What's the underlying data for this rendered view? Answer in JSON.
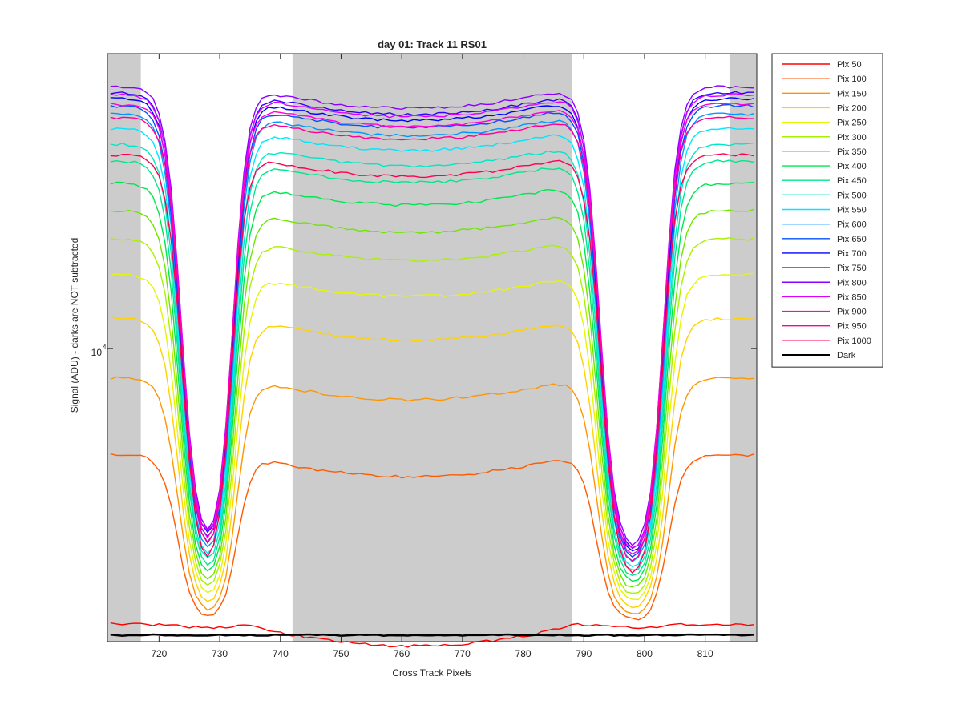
{
  "chart_data": {
    "type": "line",
    "title": "day 01: Track 11  RS01",
    "xlabel": "Cross Track Pixels",
    "ylabel": "Signal (ADU) - darks are NOT subtracted",
    "xlim": [
      711.5,
      818.5
    ],
    "ylim": [
      2800,
      36000
    ],
    "yscale": "log",
    "x_ticks": [
      "720",
      "730",
      "740",
      "750",
      "760",
      "770",
      "780",
      "790",
      "800",
      "810"
    ],
    "x_tick_values": [
      720,
      730,
      740,
      750,
      760,
      770,
      780,
      790,
      800,
      810
    ],
    "y_tick_label": "10",
    "y_tick_label_exp": "4",
    "y_tick_value": 10000,
    "shaded_bands": [
      [
        711.5,
        717
      ],
      [
        742,
        788
      ],
      [
        814,
        818.5
      ]
    ],
    "shade_color": "#cccccc",
    "legend_position": "outside-right",
    "profile_shape": {
      "edges": [
        719,
        734,
        789,
        805
      ],
      "dip_bottom_x": [
        730,
        802
      ],
      "center_dip_fraction": 0.09
    },
    "series": [
      {
        "name": "Pix 50",
        "color": "#ff0000",
        "plateau": 3020,
        "dip": 2980
      },
      {
        "name": "Pix 100",
        "color": "#ff5a00",
        "plateau": 6300,
        "dip": 3050
      },
      {
        "name": "Pix 150",
        "color": "#ff9600",
        "plateau": 8800,
        "dip": 3100
      },
      {
        "name": "Pix 200",
        "color": "#ffd200",
        "plateau": 11400,
        "dip": 3180
      },
      {
        "name": "Pix 250",
        "color": "#e6f500",
        "plateau": 13800,
        "dip": 3260
      },
      {
        "name": "Pix 300",
        "color": "#aaf000",
        "plateau": 16100,
        "dip": 3340
      },
      {
        "name": "Pix 350",
        "color": "#6ee600",
        "plateau": 18200,
        "dip": 3420
      },
      {
        "name": "Pix 400",
        "color": "#00e650",
        "plateau": 20500,
        "dip": 3500
      },
      {
        "name": "Pix 450",
        "color": "#00e68c",
        "plateau": 22600,
        "dip": 3580
      },
      {
        "name": "Pix 500",
        "color": "#00e6c8",
        "plateau": 24300,
        "dip": 3650
      },
      {
        "name": "Pix 550",
        "color": "#00e6ff",
        "plateau": 26000,
        "dip": 3720
      },
      {
        "name": "Pix 600",
        "color": "#0096ff",
        "plateau": 27700,
        "dip": 3790
      },
      {
        "name": "Pix 650",
        "color": "#0050ff",
        "plateau": 28700,
        "dip": 3860
      },
      {
        "name": "Pix 700",
        "color": "#0000ff",
        "plateau": 29600,
        "dip": 3920
      },
      {
        "name": "Pix 750",
        "color": "#3200ff",
        "plateau": 30400,
        "dip": 3980
      },
      {
        "name": "Pix 800",
        "color": "#8c00ff",
        "plateau": 31200,
        "dip": 4030
      },
      {
        "name": "Pix 850",
        "color": "#dc00ff",
        "plateau": 30100,
        "dip": 3950
      },
      {
        "name": "Pix 900",
        "color": "#ff00dc",
        "plateau": 28900,
        "dip": 3850
      },
      {
        "name": "Pix 950",
        "color": "#ff0096",
        "plateau": 27300,
        "dip": 3720
      },
      {
        "name": "Pix 1000",
        "color": "#ff0050",
        "plateau": 23200,
        "dip": 3550
      },
      {
        "name": "Dark",
        "color": "#000000",
        "plateau": 2880,
        "dip": 2880
      }
    ]
  }
}
